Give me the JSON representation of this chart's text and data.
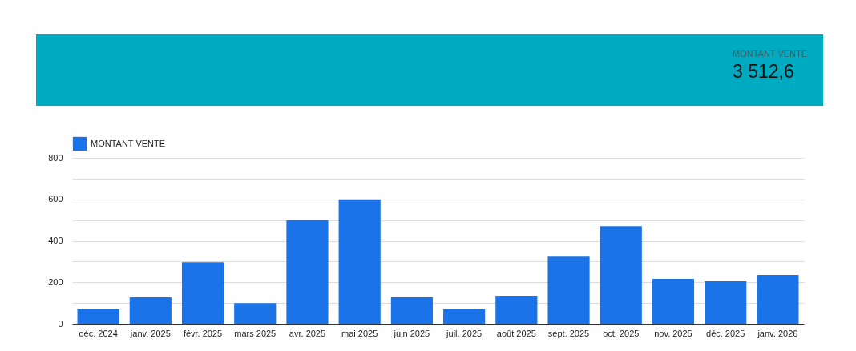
{
  "chart_data": [
    {
      "type": "other",
      "title": "MONTANT VENTE",
      "annotations": [
        "3 512,6"
      ]
    },
    {
      "type": "bar",
      "categories": [
        "déc. 2024",
        "janv. 2025",
        "févr. 2025",
        "mars 2025",
        "avr. 2025",
        "mai 2025",
        "juin 2025",
        "juil. 2025",
        "août 2025",
        "sept. 2025",
        "oct. 2025",
        "nov. 2025",
        "déc. 2025",
        "janv. 2026"
      ],
      "series": [
        {
          "name": "MONTANT VENTE",
          "color": "#1a73e8",
          "values": [
            70,
            128,
            297,
            100,
            500,
            600,
            128,
            70,
            135,
            324,
            471,
            216,
            205,
            236
          ]
        }
      ],
      "ylim": [
        0,
        800
      ],
      "yticks": [
        0,
        {
          "value": 100,
          "label": null
        },
        200,
        {
          "value": 300,
          "label": null
        },
        400,
        {
          "value": 500,
          "label": null
        },
        600,
        {
          "value": 700,
          "label": null
        },
        800
      ],
      "grid": "y",
      "legend": "top left"
    }
  ]
}
